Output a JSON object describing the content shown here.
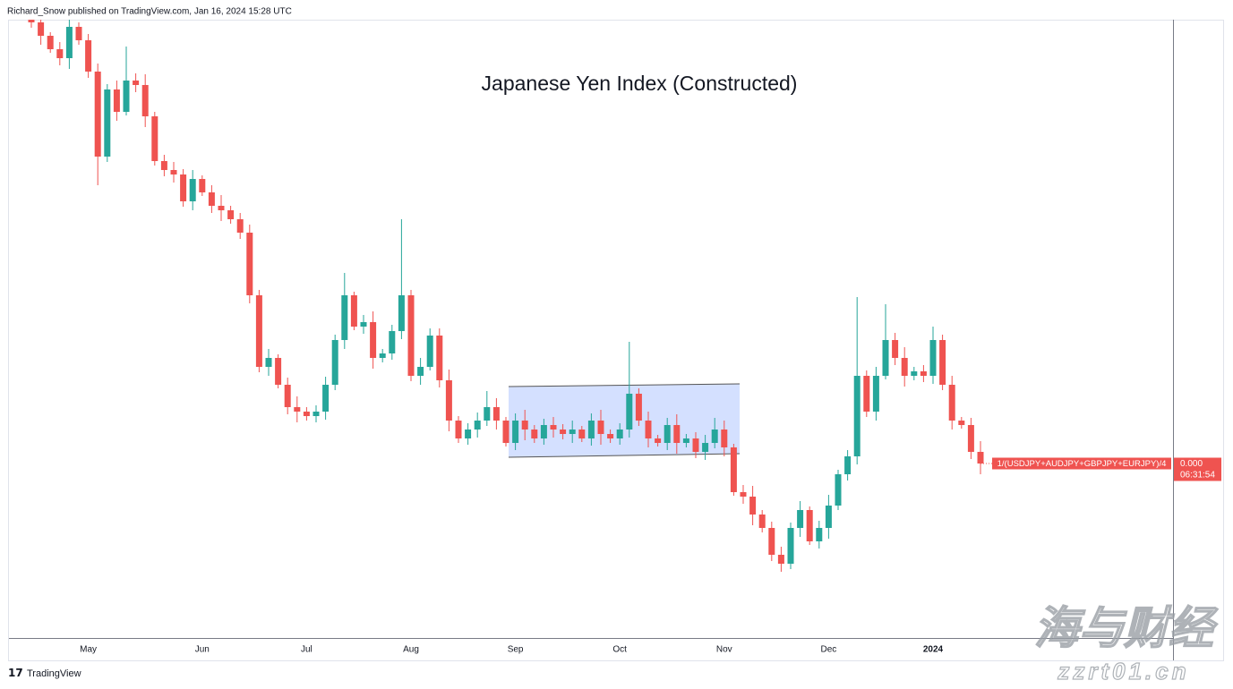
{
  "header": "Richard_Snow published on TradingView.com, Jan 16, 2024 15:28 UTC",
  "footer": "TradingView",
  "watermark": [
    "海与财经",
    "zzrt01.cn"
  ],
  "chart_data": {
    "type": "candlestick",
    "title": "Japanese Yen Index (Constructed)",
    "categories": [
      null,
      null,
      null,
      null,
      null,
      null,
      "May",
      null,
      null,
      null,
      null,
      null,
      null,
      null,
      null,
      null,
      null,
      null,
      "Jun",
      null,
      null,
      null,
      null,
      null,
      null,
      null,
      null,
      null,
      null,
      "Jul",
      null,
      null,
      null,
      null,
      null,
      null,
      null,
      null,
      null,
      null,
      "Aug",
      null,
      null,
      null,
      null,
      null,
      null,
      null,
      null,
      null,
      null,
      "Sep",
      null,
      null,
      null,
      null,
      null,
      null,
      null,
      null,
      null,
      null,
      "Oct",
      null,
      null,
      null,
      null,
      null,
      null,
      null,
      null,
      null,
      null,
      "Nov",
      null,
      null,
      null,
      null,
      null,
      null,
      null,
      null,
      null,
      null,
      "Dec",
      null,
      null,
      null,
      null,
      null,
      null,
      null,
      null,
      null,
      null,
      "2024",
      null,
      null,
      null,
      null,
      null
    ],
    "ylim": [
      0.0004,
      0.000469
    ],
    "series": [
      {
        "name": "1/(USDJPY+AUDJPY+GBPJPY+EURJPY)/4",
        "up_color": "#26a69a",
        "down_color": "#ef5350",
        "last_value_label": "0.000",
        "countdown": "06:31:54",
        "open": [
          0.0004692,
          0.0004687,
          0.0004672,
          0.0004657,
          0.0004647,
          0.0004682,
          0.0004667,
          0.0004632,
          0.0004537,
          0.0004612,
          0.0004587,
          0.0004622,
          0.0004617,
          0.0004582,
          0.0004532,
          0.0004522,
          0.0004517,
          0.0004487,
          0.0004512,
          0.0004497,
          0.0004482,
          0.0004477,
          0.0004467,
          0.0004452,
          0.0004382,
          0.0004302,
          0.0004312,
          0.0004282,
          0.0004257,
          0.0004252,
          0.0004247,
          0.0004252,
          0.0004282,
          0.0004332,
          0.0004382,
          0.0004347,
          0.0004352,
          0.0004312,
          0.0004317,
          0.0004342,
          0.0004382,
          0.0004292,
          0.0004302,
          0.0004337,
          0.0004287,
          0.0004242,
          0.0004222,
          0.0004232,
          0.0004242,
          0.0004257,
          0.0004242,
          0.0004217,
          0.0004242,
          0.0004232,
          0.0004222,
          0.0004237,
          0.0004232,
          0.0004227,
          0.0004232,
          0.0004222,
          0.0004242,
          0.0004227,
          0.0004222,
          0.0004232,
          0.0004272,
          0.0004242,
          0.0004222,
          0.0004217,
          0.0004237,
          0.0004217,
          0.0004222,
          0.0004207,
          0.0004217,
          0.0004232,
          0.0004212,
          0.0004162,
          0.0004157,
          0.0004137,
          0.0004122,
          0.0004092,
          0.0004082,
          0.0004122,
          0.0004142,
          0.0004107,
          0.0004122,
          0.0004147,
          0.0004182,
          0.0004202,
          0.0004292,
          0.0004252,
          0.0004292,
          0.0004332,
          0.0004312,
          0.0004292,
          0.0004297,
          0.0004292,
          0.0004332,
          0.0004282,
          0.0004242,
          0.0004237,
          0.0004207
        ],
        "high": [
          0.0004698,
          0.0004697,
          0.0004676,
          0.0004665,
          0.0004694,
          0.0004687,
          0.0004674,
          0.0004641,
          0.0004618,
          0.0004622,
          0.000466,
          0.000463,
          0.0004629,
          0.0004587,
          0.0004539,
          0.0004531,
          0.0004523,
          0.0004522,
          0.0004516,
          0.0004505,
          0.0004494,
          0.0004482,
          0.0004474,
          0.0004461,
          0.0004388,
          0.0004322,
          0.0004316,
          0.000429,
          0.0004269,
          0.0004257,
          0.0004259,
          0.0004291,
          0.0004338,
          0.0004407,
          0.0004386,
          0.000436,
          0.0004364,
          0.0004322,
          0.0004349,
          0.0004467,
          0.0004388,
          0.0004312,
          0.0004345,
          0.0004345,
          0.0004299,
          0.0004247,
          0.0004239,
          0.0004251,
          0.0004275,
          0.0004267,
          0.0004246,
          0.000425,
          0.0004254,
          0.0004237,
          0.0004244,
          0.0004246,
          0.0004238,
          0.0004242,
          0.0004236,
          0.000425,
          0.0004254,
          0.0004232,
          0.0004239,
          0.000433,
          0.0004278,
          0.0004252,
          0.0004226,
          0.0004245,
          0.0004249,
          0.0004227,
          0.0004229,
          0.0004226,
          0.0004245,
          0.0004242,
          0.0004216,
          0.000417,
          0.0004169,
          0.0004142,
          0.0004129,
          0.0004101,
          0.0004128,
          0.0004152,
          0.0004146,
          0.000413,
          0.0004159,
          0.0004187,
          0.0004209,
          0.000438,
          0.0004298,
          0.0004302,
          0.0004372,
          0.000434,
          0.0004324,
          0.0004302,
          0.0004304,
          0.0004347,
          0.0004338,
          0.0004292,
          0.0004246,
          0.0004245,
          0.0004219
        ],
        "low": [
          0.0004681,
          0.0004662,
          0.0004653,
          0.0004639,
          0.0004635,
          0.0004662,
          0.0004625,
          0.0004505,
          0.0004531,
          0.0004577,
          0.0004583,
          0.0004609,
          0.000457,
          0.0004527,
          0.0004515,
          0.0004508,
          0.0004481,
          0.0004477,
          0.0004493,
          0.0004474,
          0.0004465,
          0.0004462,
          0.0004445,
          0.0004373,
          0.0004296,
          0.0004292,
          0.0004278,
          0.0004249,
          0.000424,
          0.0004242,
          0.000424,
          0.0004243,
          0.0004276,
          0.0004322,
          0.0004343,
          0.0004339,
          0.00043,
          0.0004307,
          0.000431,
          0.0004333,
          0.0004286,
          0.0004282,
          0.0004298,
          0.0004279,
          0.000423,
          0.0004217,
          0.0004215,
          0.0004223,
          0.0004236,
          0.0004232,
          0.0004213,
          0.0004209,
          0.000422,
          0.0004217,
          0.0004215,
          0.0004223,
          0.0004221,
          0.0004217,
          0.0004218,
          0.0004214,
          0.0004215,
          0.0004217,
          0.0004215,
          0.0004223,
          0.0004236,
          0.0004212,
          0.0004213,
          0.0004209,
          0.0004205,
          0.0004212,
          0.00042,
          0.0004198,
          0.0004211,
          0.0004202,
          0.0004158,
          0.0004149,
          0.0004125,
          0.0004117,
          0.0004085,
          0.0004073,
          0.0004076,
          0.0004112,
          0.0004103,
          0.0004099,
          0.000411,
          0.0004142,
          0.0004175,
          0.0004193,
          0.0004246,
          0.0004242,
          0.0004288,
          0.0004304,
          0.000428,
          0.0004287,
          0.0004285,
          0.0004283,
          0.0004276,
          0.0004232,
          0.0004233,
          0.0004199,
          0.0004182
        ],
        "close": [
          0.0004687,
          0.0004672,
          0.0004657,
          0.0004647,
          0.0004682,
          0.0004667,
          0.0004632,
          0.0004537,
          0.0004612,
          0.0004587,
          0.0004622,
          0.0004617,
          0.0004582,
          0.0004532,
          0.0004522,
          0.0004517,
          0.0004487,
          0.0004512,
          0.0004497,
          0.0004482,
          0.0004477,
          0.0004467,
          0.0004452,
          0.0004382,
          0.0004302,
          0.0004312,
          0.0004282,
          0.0004257,
          0.0004252,
          0.0004247,
          0.0004252,
          0.0004282,
          0.0004332,
          0.0004382,
          0.0004347,
          0.0004352,
          0.0004312,
          0.0004317,
          0.0004342,
          0.0004382,
          0.0004292,
          0.0004302,
          0.0004337,
          0.0004287,
          0.0004242,
          0.0004222,
          0.0004232,
          0.0004242,
          0.0004257,
          0.0004242,
          0.0004217,
          0.0004242,
          0.0004232,
          0.0004222,
          0.0004237,
          0.0004232,
          0.0004227,
          0.0004232,
          0.0004222,
          0.0004242,
          0.0004227,
          0.0004222,
          0.0004232,
          0.0004272,
          0.0004242,
          0.0004222,
          0.0004217,
          0.0004237,
          0.0004217,
          0.0004222,
          0.0004207,
          0.0004217,
          0.0004232,
          0.0004212,
          0.0004162,
          0.0004157,
          0.0004137,
          0.0004122,
          0.0004092,
          0.0004082,
          0.0004122,
          0.0004142,
          0.0004107,
          0.0004122,
          0.0004147,
          0.0004182,
          0.0004202,
          0.0004292,
          0.0004252,
          0.0004292,
          0.0004332,
          0.0004312,
          0.0004292,
          0.0004297,
          0.0004292,
          0.0004332,
          0.0004282,
          0.0004242,
          0.0004237,
          0.0004207,
          0.0004194
        ]
      }
    ]
  }
}
